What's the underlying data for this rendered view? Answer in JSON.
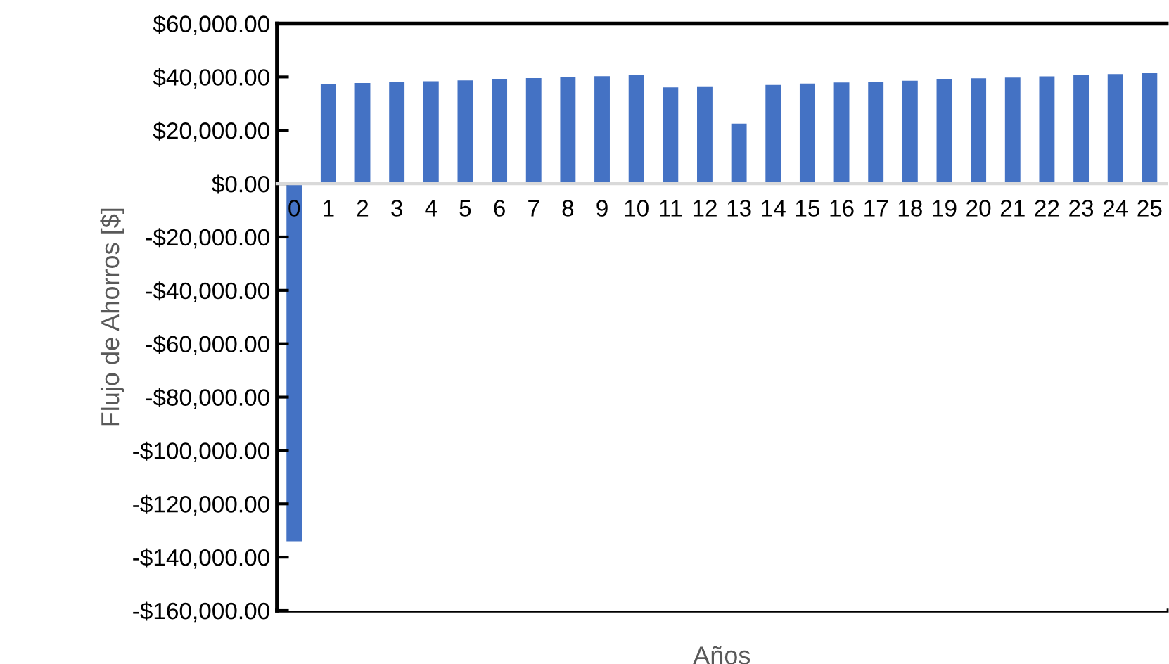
{
  "chart_data": {
    "type": "bar",
    "xlabel": "Años",
    "ylabel": "Flujo de Ahorros [$]",
    "categories": [
      "0",
      "1",
      "2",
      "3",
      "4",
      "5",
      "6",
      "7",
      "8",
      "9",
      "10",
      "11",
      "12",
      "13",
      "14",
      "15",
      "16",
      "17",
      "18",
      "19",
      "20",
      "21",
      "22",
      "23",
      "24",
      "25"
    ],
    "series": [
      {
        "color": "#4472c4",
        "values": [
          -134000,
          37400,
          37700,
          38000,
          38400,
          38700,
          39100,
          39600,
          40000,
          40300,
          40700,
          36100,
          36500,
          22500,
          37000,
          37500,
          37900,
          38200,
          38600,
          39100,
          39500,
          39800,
          40200,
          40700,
          41100,
          41400
        ]
      }
    ],
    "ylim": [
      -160000,
      60000
    ],
    "yticks": [
      {
        "value": -160000,
        "label": "-$160,000.00"
      },
      {
        "value": -140000,
        "label": "-$140,000.00"
      },
      {
        "value": -120000,
        "label": "-$120,000.00"
      },
      {
        "value": -100000,
        "label": "-$100,000.00"
      },
      {
        "value": -80000,
        "label": "-$80,000.00"
      },
      {
        "value": -60000,
        "label": "-$60,000.00"
      },
      {
        "value": -40000,
        "label": "-$40,000.00"
      },
      {
        "value": -20000,
        "label": "-$20,000.00"
      },
      {
        "value": 0,
        "label": "$0.00"
      },
      {
        "value": 20000,
        "label": "$20,000.00"
      },
      {
        "value": 40000,
        "label": "$40,000.00"
      },
      {
        "value": 60000,
        "label": "$60,000.00"
      }
    ],
    "grid": false,
    "legend": false
  }
}
